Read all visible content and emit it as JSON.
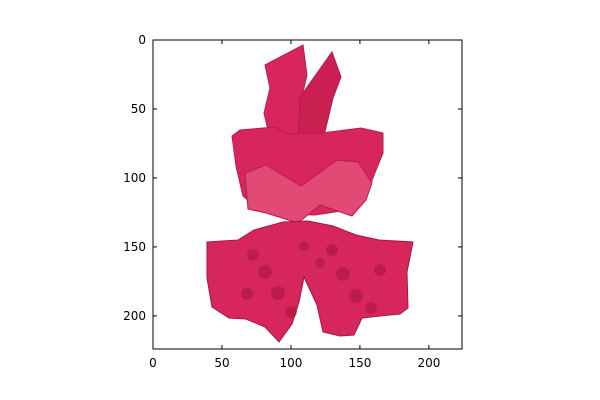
{
  "chart_data": {
    "type": "image",
    "title": "",
    "xlabel": "",
    "ylabel": "",
    "xlim": [
      0,
      224
    ],
    "ylim": [
      224,
      0
    ],
    "xticks": [
      0,
      50,
      100,
      150,
      200
    ],
    "yticks": [
      0,
      50,
      100,
      150,
      200
    ],
    "image_content": "red ruffled strapless garment on white background",
    "colors": {
      "garment_main": "#d7265b",
      "garment_dark": "#b81c49",
      "garment_light": "#e04a75",
      "garment_shadow": "#a5163f",
      "background": "#ffffff",
      "axes": "#000000"
    }
  }
}
